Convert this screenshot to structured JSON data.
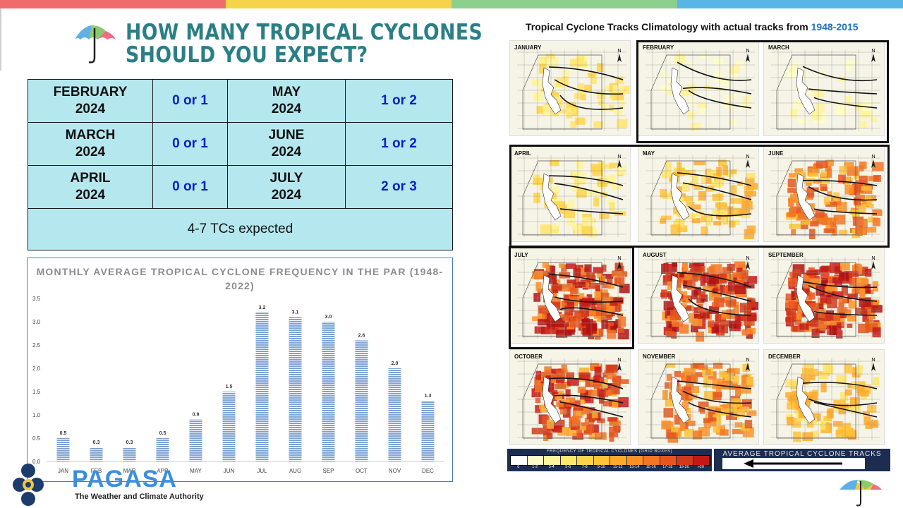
{
  "header": {
    "title_line1": "HOW MANY TROPICAL CYCLONES",
    "title_line2": "SHOULD YOU EXPECT?"
  },
  "topbar_colors": [
    "#f06b6b",
    "#f5d34a",
    "#8ccf8e",
    "#58b6e6"
  ],
  "forecast_table": {
    "rows": [
      {
        "month1": "FEBRUARY",
        "year1": "2024",
        "value1": "0 or 1",
        "month2": "MAY",
        "year2": "2024",
        "value2": "1 or 2"
      },
      {
        "month1": "MARCH",
        "year1": "2024",
        "value1": "0 or 1",
        "month2": "JUNE",
        "year2": "2024",
        "value2": "1 or 2"
      },
      {
        "month1": "APRIL",
        "year1": "2024",
        "value1": "0 or 1",
        "month2": "JULY",
        "year2": "2024",
        "value2": "2 or 3"
      }
    ],
    "summary": "4-7 TCs expected"
  },
  "chart_data": {
    "type": "bar",
    "title": "MONTHLY AVERAGE TROPICAL CYCLONE FREQUENCY IN THE PAR (1948-2022)",
    "categories": [
      "JAN",
      "FEB",
      "MAR",
      "APR",
      "MAY",
      "JUN",
      "JUL",
      "AUG",
      "SEP",
      "OCT",
      "NOV",
      "DEC"
    ],
    "values": [
      0.5,
      0.3,
      0.3,
      0.5,
      0.9,
      1.5,
      3.2,
      3.1,
      3.0,
      2.6,
      2.0,
      1.3
    ],
    "data_labels": [
      "0.5",
      "0.3",
      "0.3",
      "0.5",
      "0.9",
      "1.5",
      "3.2",
      "3.1",
      "3.0",
      "2.6",
      "2.0",
      "1.3"
    ],
    "yticks": [
      "0.0",
      "0.5",
      "1.0",
      "1.5",
      "2.0",
      "2.5",
      "3.0",
      "3.5"
    ],
    "ylim": [
      0,
      3.5
    ],
    "bar_color": "#7ea3d6",
    "xlabel": "",
    "ylabel": ""
  },
  "branding": {
    "name": "PAGASA",
    "tagline": "The Weather and Climate Authority"
  },
  "climatology": {
    "title_text": "Tropical Cyclone Tracks Climatology with actual tracks from ",
    "title_years": "1948-2015",
    "maps": [
      {
        "label": "JANUARY",
        "intensity": 1
      },
      {
        "label": "FEBRUARY",
        "intensity": 0
      },
      {
        "label": "MARCH",
        "intensity": 0
      },
      {
        "label": "APRIL",
        "intensity": 1
      },
      {
        "label": "MAY",
        "intensity": 2
      },
      {
        "label": "JUNE",
        "intensity": 3
      },
      {
        "label": "JULY",
        "intensity": 5
      },
      {
        "label": "AUGUST",
        "intensity": 5
      },
      {
        "label": "SEPTEMBER",
        "intensity": 5
      },
      {
        "label": "OCTOBER",
        "intensity": 4
      },
      {
        "label": "NOVEMBER",
        "intensity": 3
      },
      {
        "label": "DECEMBER",
        "intensity": 2
      }
    ],
    "legend_title": "FREQUENCY OF TROPICAL CYCLONES (GRID BOXES)",
    "legend_labels": [
      "0",
      "1-2",
      "3-4",
      "5-6",
      "7-8",
      "9-10",
      "11-12",
      "13-14",
      "15-16",
      "17-18",
      "19-20",
      ">20"
    ],
    "legend_colors": [
      "#ffffff",
      "#fffcc6",
      "#fff59a",
      "#ffe96b",
      "#ffd64a",
      "#ffc238",
      "#ffaa2c",
      "#ff9026",
      "#f57522",
      "#e6561e",
      "#d1391b",
      "#c41a16"
    ],
    "avg_tracks_label": "AVERAGE TROPICAL CYCLONE TRACKS"
  }
}
